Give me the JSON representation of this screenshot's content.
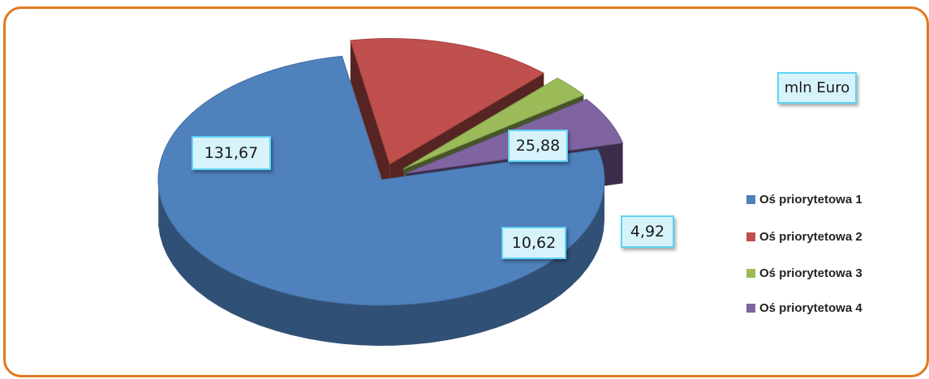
{
  "chart_data": {
    "type": "pie",
    "subtitle": "mln Euro",
    "categories": [
      "Oś priorytetowa 1",
      "Oś priorytetowa 2",
      "Oś priorytetowa 3",
      "Oś priorytetowa 4"
    ],
    "values": [
      131.67,
      25.88,
      4.92,
      10.62
    ],
    "data_labels": [
      "131,67",
      "25,88",
      "4,92",
      "10,62"
    ],
    "colors": [
      "#4f81bd",
      "#c0504d",
      "#9bbb59",
      "#8064a2"
    ],
    "legend_position": "right",
    "style": "3d-exploded"
  }
}
